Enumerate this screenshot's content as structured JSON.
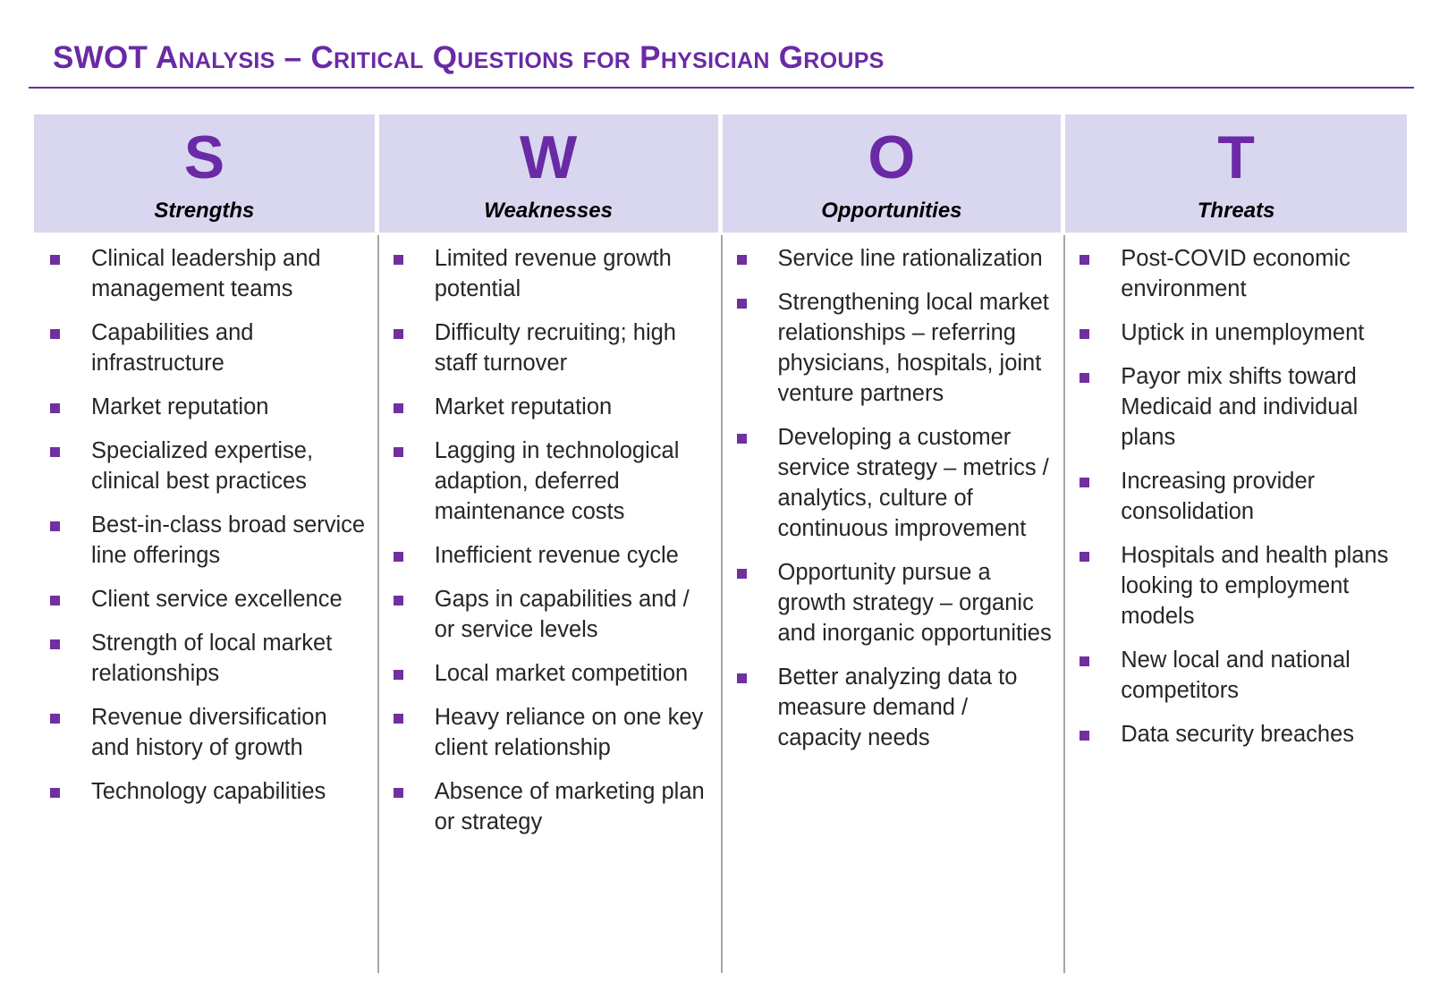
{
  "title": "SWOT Analysis – Critical Questions for Physician Groups",
  "colors": {
    "accent": "#6a2aa6",
    "header_bg": "#d9d7ef",
    "bullet": "#7030a0",
    "divider": "#a6a6a6"
  },
  "columns": [
    {
      "letter": "S",
      "label": "Strengths",
      "items": [
        "Clinical leadership and management teams",
        "Capabilities and infrastructure",
        "Market reputation",
        "Specialized expertise, clinical best practices",
        "Best-in-class broad service line offerings",
        "Client service excellence",
        "Strength of local market relationships",
        "Revenue diversification and history of growth",
        "Technology capabilities"
      ]
    },
    {
      "letter": "W",
      "label": "Weaknesses",
      "items": [
        "Limited revenue growth potential",
        "Difficulty recruiting; high staff turnover",
        "Market reputation",
        "Lagging in technological adaption, deferred maintenance costs",
        "Inefficient revenue cycle",
        "Gaps in capabilities and / or service levels",
        "Local market competition",
        "Heavy reliance on one key client relationship",
        "Absence of marketing plan or strategy"
      ]
    },
    {
      "letter": "O",
      "label": "Opportunities",
      "items": [
        "Service line rationalization",
        "Strengthening local market relationships – referring physicians, hospitals, joint venture partners",
        "Developing a customer service strategy – metrics / analytics, culture of continuous improvement",
        "Opportunity pursue a growth strategy – organic and inorganic opportunities",
        "Better analyzing data to measure demand / capacity needs"
      ]
    },
    {
      "letter": "T",
      "label": "Threats",
      "items": [
        "Post-COVID economic environment",
        "Uptick in unemployment",
        "Payor mix shifts toward Medicaid and individual plans",
        "Increasing provider consolidation",
        "Hospitals and health plans looking to employment models",
        "New local and national competitors",
        "Data security breaches"
      ]
    }
  ]
}
